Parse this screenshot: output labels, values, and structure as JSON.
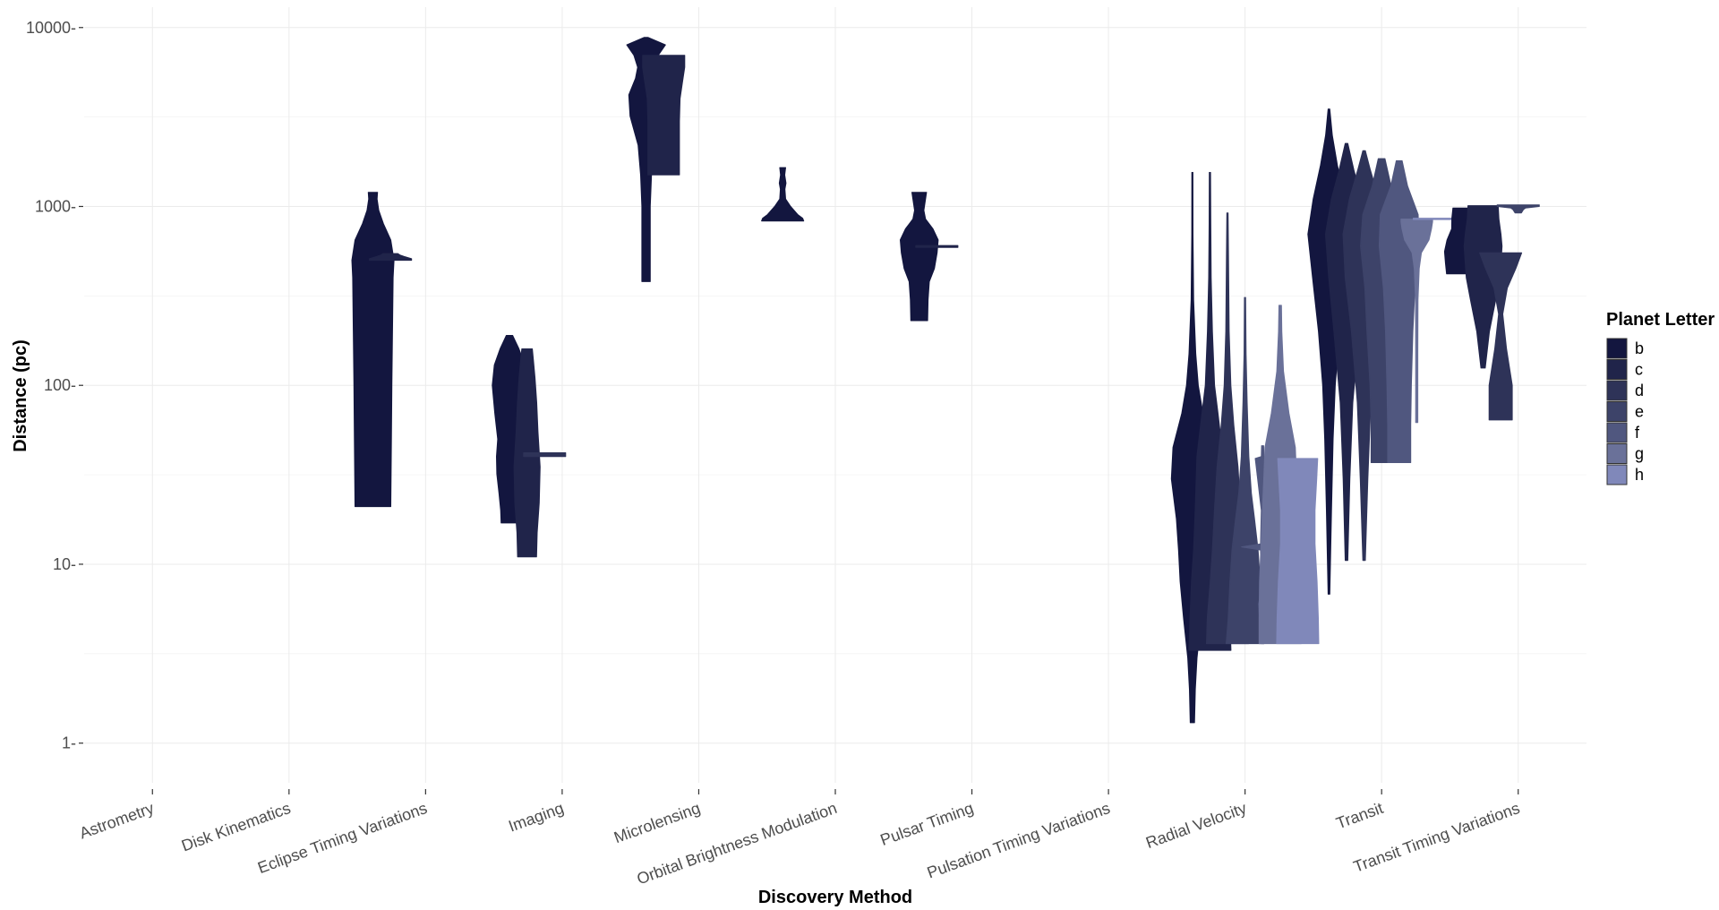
{
  "chart_data": {
    "type": "violin",
    "xlabel": "Discovery Method",
    "ylabel": "Distance (pc)",
    "y_scale": "log10",
    "ylim": [
      0.6,
      13000
    ],
    "y_ticks": [
      1,
      10,
      100,
      1000,
      10000
    ],
    "y_tick_labels": [
      "1",
      "10",
      "100",
      "1000",
      "10000"
    ],
    "grid": true,
    "categories": [
      "Astrometry",
      "Disk Kinematics",
      "Eclipse Timing Variations",
      "Imaging",
      "Microlensing",
      "Orbital Brightness Modulation",
      "Pulsar Timing",
      "Pulsation Timing Variations",
      "Radial Velocity",
      "Transit",
      "Transit Timing Variations"
    ],
    "legend": {
      "title": "Planet Letter",
      "position": "right",
      "entries": [
        {
          "label": "b",
          "color": "#13163f"
        },
        {
          "label": "c",
          "color": "#20244a"
        },
        {
          "label": "d",
          "color": "#2e3358"
        },
        {
          "label": "e",
          "color": "#3d4369"
        },
        {
          "label": "f",
          "color": "#50577f"
        },
        {
          "label": "g",
          "color": "#6a7199"
        },
        {
          "label": "h",
          "color": "#8088ba"
        }
      ]
    },
    "violins": [
      {
        "category": "Eclipse Timing Variations",
        "letter": "b",
        "min": 21,
        "max": 1200,
        "profile": [
          [
            21,
            0.85
          ],
          [
            50,
            0.88
          ],
          [
            100,
            0.9
          ],
          [
            200,
            0.93
          ],
          [
            400,
            0.96
          ],
          [
            500,
            1.0
          ],
          [
            650,
            0.85
          ],
          [
            800,
            0.5
          ],
          [
            950,
            0.28
          ],
          [
            1100,
            0.2
          ],
          [
            1200,
            0.22
          ]
        ]
      },
      {
        "category": "Eclipse Timing Variations",
        "letter": "c",
        "min": 500,
        "max": 545,
        "profile": [
          [
            500,
            1.0
          ],
          [
            510,
            1.0
          ],
          [
            525,
            0.65
          ],
          [
            535,
            0.45
          ],
          [
            545,
            0.35
          ]
        ]
      },
      {
        "category": "Imaging",
        "letter": "b",
        "min": 17,
        "max": 190,
        "profile": [
          [
            17,
            0.4
          ],
          [
            20,
            0.42
          ],
          [
            25,
            0.5
          ],
          [
            32,
            0.6
          ],
          [
            40,
            0.62
          ],
          [
            50,
            0.56
          ],
          [
            70,
            0.7
          ],
          [
            100,
            0.82
          ],
          [
            130,
            0.72
          ],
          [
            160,
            0.45
          ],
          [
            190,
            0.15
          ]
        ]
      },
      {
        "category": "Imaging",
        "letter": "c",
        "min": 11,
        "max": 160,
        "profile": [
          [
            11,
            0.45
          ],
          [
            15,
            0.48
          ],
          [
            22,
            0.58
          ],
          [
            35,
            0.62
          ],
          [
            55,
            0.52
          ],
          [
            80,
            0.46
          ],
          [
            110,
            0.38
          ],
          [
            140,
            0.3
          ],
          [
            160,
            0.25
          ]
        ]
      },
      {
        "category": "Imaging",
        "letter": "d",
        "min": 40,
        "max": 42,
        "profile": [
          [
            40,
            1.0
          ],
          [
            42,
            1.0
          ]
        ]
      },
      {
        "category": "Microlensing",
        "letter": "b",
        "min": 380,
        "max": 8800,
        "profile": [
          [
            380,
            0.2
          ],
          [
            600,
            0.2
          ],
          [
            1000,
            0.2
          ],
          [
            1500,
            0.26
          ],
          [
            2200,
            0.38
          ],
          [
            3200,
            0.76
          ],
          [
            4200,
            0.82
          ],
          [
            5200,
            0.5
          ],
          [
            6000,
            0.4
          ],
          [
            7000,
            0.58
          ],
          [
            8000,
            0.92
          ],
          [
            8800,
            0.1
          ]
        ]
      },
      {
        "category": "Microlensing",
        "letter": "c",
        "min": 1500,
        "max": 7000,
        "profile": [
          [
            1500,
            0.75
          ],
          [
            2000,
            0.75
          ],
          [
            3000,
            0.75
          ],
          [
            4000,
            0.78
          ],
          [
            5000,
            0.9
          ],
          [
            6000,
            1.0
          ],
          [
            7000,
            1.0
          ]
        ]
      },
      {
        "category": "Orbital Brightness Modulation",
        "letter": "b",
        "min": 830,
        "max": 1650,
        "profile": [
          [
            830,
            1.0
          ],
          [
            860,
            0.95
          ],
          [
            900,
            0.72
          ],
          [
            1000,
            0.38
          ],
          [
            1100,
            0.14
          ],
          [
            1250,
            0.11
          ],
          [
            1350,
            0.16
          ],
          [
            1500,
            0.1
          ],
          [
            1650,
            0.14
          ]
        ]
      },
      {
        "category": "Pulsar Timing",
        "letter": "b",
        "min": 230,
        "max": 1200,
        "profile": [
          [
            230,
            0.4
          ],
          [
            300,
            0.42
          ],
          [
            380,
            0.48
          ],
          [
            450,
            0.72
          ],
          [
            550,
            0.85
          ],
          [
            650,
            0.9
          ],
          [
            750,
            0.65
          ],
          [
            850,
            0.3
          ],
          [
            950,
            0.22
          ],
          [
            1100,
            0.3
          ],
          [
            1200,
            0.35
          ]
        ]
      },
      {
        "category": "Pulsar Timing",
        "letter": "c",
        "min": 590,
        "max": 605,
        "profile": [
          [
            590,
            1.0
          ],
          [
            605,
            1.0
          ]
        ]
      },
      {
        "category": "Radial Velocity",
        "letter": "b",
        "min": 1.3,
        "max": 1550,
        "profile": [
          [
            1.3,
            0.1
          ],
          [
            2,
            0.14
          ],
          [
            3,
            0.22
          ],
          [
            5,
            0.42
          ],
          [
            8,
            0.58
          ],
          [
            12,
            0.66
          ],
          [
            18,
            0.76
          ],
          [
            30,
            1.0
          ],
          [
            45,
            0.92
          ],
          [
            70,
            0.5
          ],
          [
            100,
            0.28
          ],
          [
            150,
            0.16
          ],
          [
            300,
            0.06
          ],
          [
            700,
            0.03
          ],
          [
            1550,
            0.02
          ]
        ]
      },
      {
        "category": "Radial Velocity",
        "letter": "c",
        "min": 3.3,
        "max": 1550,
        "profile": [
          [
            3.3,
            1.0
          ],
          [
            5,
            0.95
          ],
          [
            8,
            0.88
          ],
          [
            12,
            0.78
          ],
          [
            20,
            0.7
          ],
          [
            40,
            0.62
          ],
          [
            70,
            0.38
          ],
          [
            100,
            0.22
          ],
          [
            200,
            0.12
          ],
          [
            400,
            0.06
          ],
          [
            800,
            0.04
          ],
          [
            1550,
            0.03
          ]
        ]
      },
      {
        "category": "Radial Velocity",
        "letter": "d",
        "min": 3.6,
        "max": 920,
        "profile": [
          [
            3.6,
            1.0
          ],
          [
            5,
            0.96
          ],
          [
            8,
            0.82
          ],
          [
            12,
            0.72
          ],
          [
            20,
            0.62
          ],
          [
            35,
            0.5
          ],
          [
            60,
            0.3
          ],
          [
            100,
            0.16
          ],
          [
            200,
            0.08
          ],
          [
            500,
            0.05
          ],
          [
            920,
            0.03
          ]
        ]
      },
      {
        "category": "Radial Velocity",
        "letter": "e",
        "min": 3.6,
        "max": 310,
        "profile": [
          [
            3.6,
            0.9
          ],
          [
            5,
            0.8
          ],
          [
            8,
            0.72
          ],
          [
            12,
            0.62
          ],
          [
            18,
            0.45
          ],
          [
            25,
            0.3
          ],
          [
            40,
            0.18
          ],
          [
            80,
            0.1
          ],
          [
            150,
            0.05
          ],
          [
            310,
            0.03
          ]
        ]
      },
      {
        "category": "Radial Velocity",
        "letter": "f",
        "min": 3.6,
        "max": 46,
        "profile": [
          [
            3.6,
            0.06
          ],
          [
            6,
            0.2
          ],
          [
            7,
            0.06
          ],
          [
            12,
            0.1
          ],
          [
            12.5,
            1.0
          ],
          [
            13,
            0.1
          ],
          [
            20,
            0.06
          ],
          [
            39,
            0.35
          ],
          [
            40,
            0.06
          ],
          [
            46,
            0.05
          ]
        ]
      },
      {
        "category": "Radial Velocity",
        "letter": "g",
        "min": 3.6,
        "max": 280,
        "profile": [
          [
            3.6,
            1.0
          ],
          [
            5,
            1.0
          ],
          [
            8,
            0.98
          ],
          [
            12,
            0.92
          ],
          [
            18,
            0.86
          ],
          [
            30,
            0.78
          ],
          [
            45,
            0.72
          ],
          [
            70,
            0.42
          ],
          [
            120,
            0.16
          ],
          [
            200,
            0.08
          ],
          [
            280,
            0.06
          ]
        ]
      },
      {
        "category": "Radial Velocity",
        "letter": "h",
        "min": 3.6,
        "max": 39,
        "profile": [
          [
            3.6,
            1.0
          ],
          [
            5,
            0.98
          ],
          [
            8,
            0.92
          ],
          [
            13,
            0.82
          ],
          [
            20,
            0.82
          ],
          [
            30,
            0.9
          ],
          [
            39,
            0.95
          ]
        ]
      },
      {
        "category": "Transit",
        "letter": "b",
        "min": 6.8,
        "max": 3500,
        "profile": [
          [
            6.8,
            0.04
          ],
          [
            20,
            0.12
          ],
          [
            50,
            0.2
          ],
          [
            100,
            0.3
          ],
          [
            200,
            0.5
          ],
          [
            400,
            0.78
          ],
          [
            700,
            1.0
          ],
          [
            1100,
            0.75
          ],
          [
            1700,
            0.4
          ],
          [
            2500,
            0.16
          ],
          [
            3500,
            0.04
          ]
        ]
      },
      {
        "category": "Transit",
        "letter": "c",
        "min": 10.5,
        "max": 2250,
        "profile": [
          [
            10.5,
            0.06
          ],
          [
            30,
            0.16
          ],
          [
            80,
            0.3
          ],
          [
            200,
            0.6
          ],
          [
            400,
            0.85
          ],
          [
            700,
            1.0
          ],
          [
            1100,
            0.72
          ],
          [
            1600,
            0.35
          ],
          [
            2250,
            0.06
          ]
        ]
      },
      {
        "category": "Transit",
        "letter": "d",
        "min": 10.5,
        "max": 2050,
        "profile": [
          [
            10.5,
            0.06
          ],
          [
            30,
            0.18
          ],
          [
            80,
            0.32
          ],
          [
            200,
            0.6
          ],
          [
            400,
            0.9
          ],
          [
            700,
            1.0
          ],
          [
            1100,
            0.7
          ],
          [
            1600,
            0.3
          ],
          [
            2050,
            0.06
          ]
        ]
      },
      {
        "category": "Transit",
        "letter": "e",
        "min": 37,
        "max": 1850,
        "profile": [
          [
            37,
            0.5
          ],
          [
            60,
            0.5
          ],
          [
            100,
            0.55
          ],
          [
            200,
            0.7
          ],
          [
            350,
            0.8
          ],
          [
            600,
            1.0
          ],
          [
            900,
            0.9
          ],
          [
            1300,
            0.45
          ],
          [
            1850,
            0.16
          ]
        ]
      },
      {
        "category": "Transit",
        "letter": "f",
        "min": 37,
        "max": 1800,
        "profile": [
          [
            37,
            0.55
          ],
          [
            60,
            0.55
          ],
          [
            100,
            0.58
          ],
          [
            200,
            0.65
          ],
          [
            350,
            0.75
          ],
          [
            600,
            0.95
          ],
          [
            900,
            0.9
          ],
          [
            1300,
            0.4
          ],
          [
            1800,
            0.14
          ]
        ]
      },
      {
        "category": "Transit",
        "letter": "g",
        "min": 62,
        "max": 850,
        "profile": [
          [
            62,
            0.05
          ],
          [
            150,
            0.05
          ],
          [
            300,
            0.06
          ],
          [
            450,
            0.12
          ],
          [
            550,
            0.22
          ],
          [
            650,
            0.58
          ],
          [
            750,
            0.7
          ],
          [
            820,
            0.75
          ],
          [
            850,
            0.75
          ]
        ]
      },
      {
        "category": "Transit",
        "letter": "h",
        "min": 845,
        "max": 860,
        "profile": [
          [
            845,
            1.0
          ],
          [
            860,
            1.0
          ]
        ]
      },
      {
        "category": "Transit Timing Variations",
        "letter": "b",
        "min": 420,
        "max": 980,
        "profile": [
          [
            420,
            0.9
          ],
          [
            480,
            0.95
          ],
          [
            560,
            1.0
          ],
          [
            650,
            0.88
          ],
          [
            750,
            0.66
          ],
          [
            860,
            0.65
          ],
          [
            980,
            0.6
          ]
        ]
      },
      {
        "category": "Transit Timing Variations",
        "letter": "c",
        "min": 125,
        "max": 1010,
        "profile": [
          [
            125,
            0.1
          ],
          [
            200,
            0.3
          ],
          [
            300,
            0.6
          ],
          [
            400,
            0.8
          ],
          [
            500,
            0.86
          ],
          [
            600,
            0.9
          ],
          [
            700,
            0.85
          ],
          [
            850,
            0.75
          ],
          [
            1010,
            0.72
          ]
        ]
      },
      {
        "category": "Transit Timing Variations",
        "letter": "d",
        "min": 64,
        "max": 550,
        "profile": [
          [
            64,
            0.55
          ],
          [
            100,
            0.55
          ],
          [
            160,
            0.28
          ],
          [
            250,
            0.1
          ],
          [
            350,
            0.32
          ],
          [
            450,
            0.72
          ],
          [
            550,
            1.0
          ]
        ]
      },
      {
        "category": "Transit Timing Variations",
        "letter": "e",
        "min": 920,
        "max": 1020,
        "profile": [
          [
            920,
            0.15
          ],
          [
            960,
            0.25
          ],
          [
            980,
            0.35
          ],
          [
            1000,
            1.0
          ],
          [
            1020,
            1.0
          ]
        ]
      }
    ]
  }
}
